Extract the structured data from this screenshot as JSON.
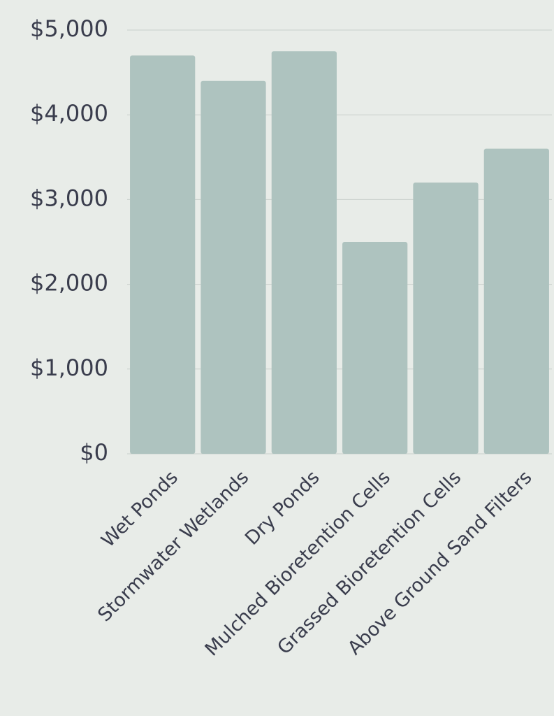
{
  "chart_data": {
    "type": "bar",
    "categories": [
      "Wet Ponds",
      "Stormwater Wetlands",
      "Dry Ponds",
      "Mulched Bioretention Cells",
      "Grassed Bioretention Cells",
      "Above Ground Sand Filters"
    ],
    "values": [
      4700,
      4400,
      4750,
      2500,
      3200,
      3600
    ],
    "color": "#aec3bf",
    "ylim": [
      0,
      5000
    ],
    "yticks": [
      {
        "value": 0,
        "label": "$0"
      },
      {
        "value": 1000,
        "label": "$1,000"
      },
      {
        "value": 2000,
        "label": "$2,000"
      },
      {
        "value": 3000,
        "label": "$3,000"
      },
      {
        "value": 4000,
        "label": "$4,000"
      },
      {
        "value": 5000,
        "label": "$5,000"
      }
    ],
    "grid": true
  }
}
